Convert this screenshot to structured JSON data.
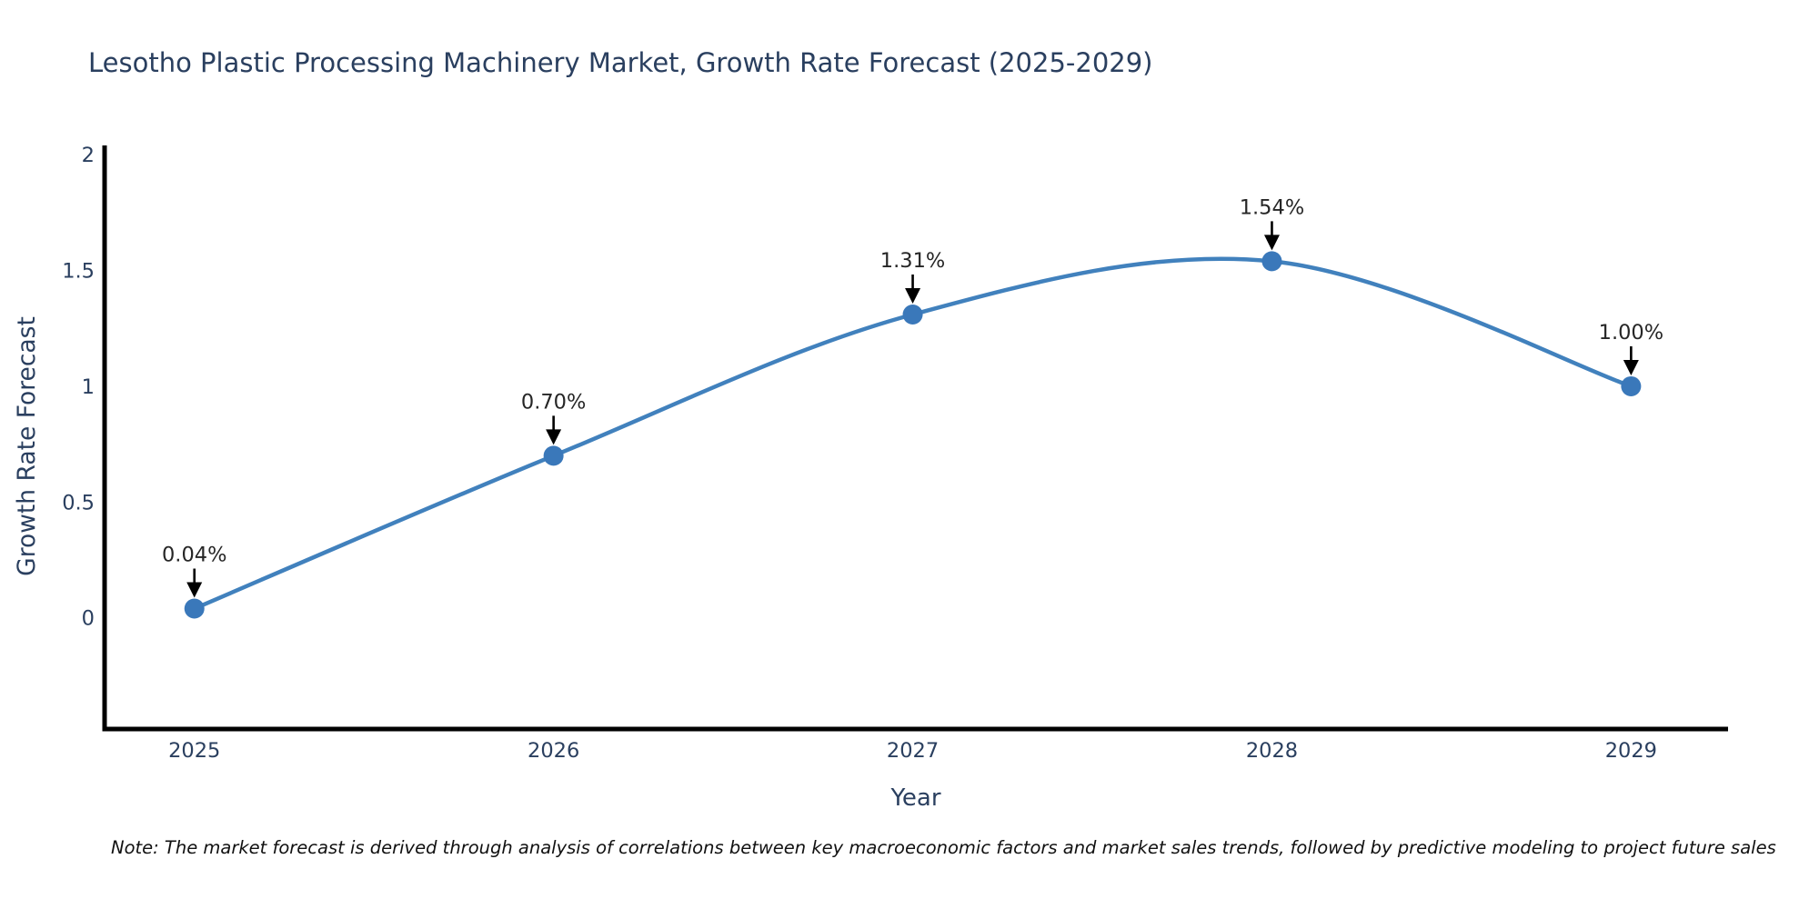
{
  "title": "Lesotho Plastic Processing Machinery Market, Growth Rate Forecast (2025-2029)",
  "note": "Note: The market forecast is derived through analysis of correlations between key macroeconomic factors and market sales trends, followed by predictive modeling to project future sales",
  "chart_data": {
    "type": "line",
    "title": "Lesotho Plastic Processing Machinery Market, Growth Rate Forecast (2025-2029)",
    "xlabel": "Year",
    "ylabel": "Growth Rate Forecast",
    "x": [
      2025,
      2026,
      2027,
      2028,
      2029
    ],
    "values": [
      0.04,
      0.7,
      1.31,
      1.54,
      1.0
    ],
    "point_labels": [
      "0.04%",
      "0.70%",
      "1.31%",
      "1.54%",
      "1.00%"
    ],
    "xtick_labels": [
      "2025",
      "2026",
      "2027",
      "2028",
      "2029"
    ],
    "yticks": [
      0,
      0.5,
      1,
      1.5,
      2
    ],
    "ytick_labels": [
      "0",
      "0.5",
      "1",
      "1.5",
      "2"
    ],
    "xlim": [
      2024.75,
      2029.27
    ],
    "ylim": [
      -0.48,
      2.04
    ],
    "grid": false,
    "legend_position": "none",
    "line_shape": "spline",
    "colors": {
      "line": "#4181bd",
      "marker": "#3a78ba",
      "arrow": "#000000",
      "axis": "#000000",
      "tick_text": "#2a3f5f",
      "axis_title_text": "#2a3f5f",
      "annotation_text": "#262626"
    }
  }
}
